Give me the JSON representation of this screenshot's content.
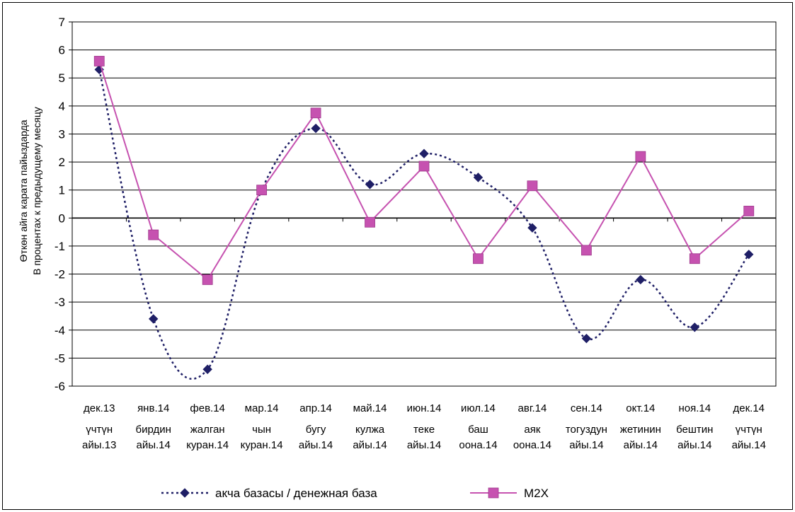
{
  "chart_data": {
    "type": "line",
    "categories": [
      {
        "line1": "дек.13",
        "line2": "үчтүн",
        "line3": "айы.13"
      },
      {
        "line1": "янв.14",
        "line2": "бирдин",
        "line3": "айы.14"
      },
      {
        "line1": "фев.14",
        "line2": "жалган",
        "line3": "куран.14"
      },
      {
        "line1": "мар.14",
        "line2": "чын",
        "line3": "куран.14"
      },
      {
        "line1": "апр.14",
        "line2": "бугу",
        "line3": "айы.14"
      },
      {
        "line1": "май.14",
        "line2": "кулжа",
        "line3": "айы.14"
      },
      {
        "line1": "июн.14",
        "line2": "теке",
        "line3": "айы.14"
      },
      {
        "line1": "июл.14",
        "line2": "баш",
        "line3": "оона.14"
      },
      {
        "line1": "авг.14",
        "line2": "аяк",
        "line3": "оона.14"
      },
      {
        "line1": "сен.14",
        "line2": "тогуздун",
        "line3": "айы.14"
      },
      {
        "line1": "окт.14",
        "line2": "жетинин",
        "line3": "айы.14"
      },
      {
        "line1": "ноя.14",
        "line2": "бештин",
        "line3": "айы.14"
      },
      {
        "line1": "дек.14",
        "line2": "үчтүн",
        "line3": "айы.14"
      }
    ],
    "series": [
      {
        "name": "акча базасы / денежная база",
        "color": "#1f1f66",
        "marker": "diamond",
        "line_style": "dotted",
        "values": [
          5.3,
          -3.6,
          -5.4,
          1.0,
          3.2,
          1.2,
          2.3,
          1.45,
          -0.35,
          -4.3,
          -2.2,
          -3.9,
          -1.3
        ]
      },
      {
        "name": "M2X",
        "color": "#c652b0",
        "marker": "square",
        "line_style": "solid",
        "values": [
          5.6,
          -0.6,
          -2.2,
          1.0,
          3.75,
          -0.15,
          1.85,
          -1.45,
          1.15,
          -1.15,
          2.2,
          -1.45,
          0.25
        ]
      }
    ],
    "ylabel_line1": "Өткөн айга карата пайыздарда",
    "ylabel_line2": "В процентах к предыдущему месяцу",
    "ylim": [
      -6,
      7
    ],
    "ytick_step": 1,
    "grid": true,
    "legend_position": "bottom"
  }
}
